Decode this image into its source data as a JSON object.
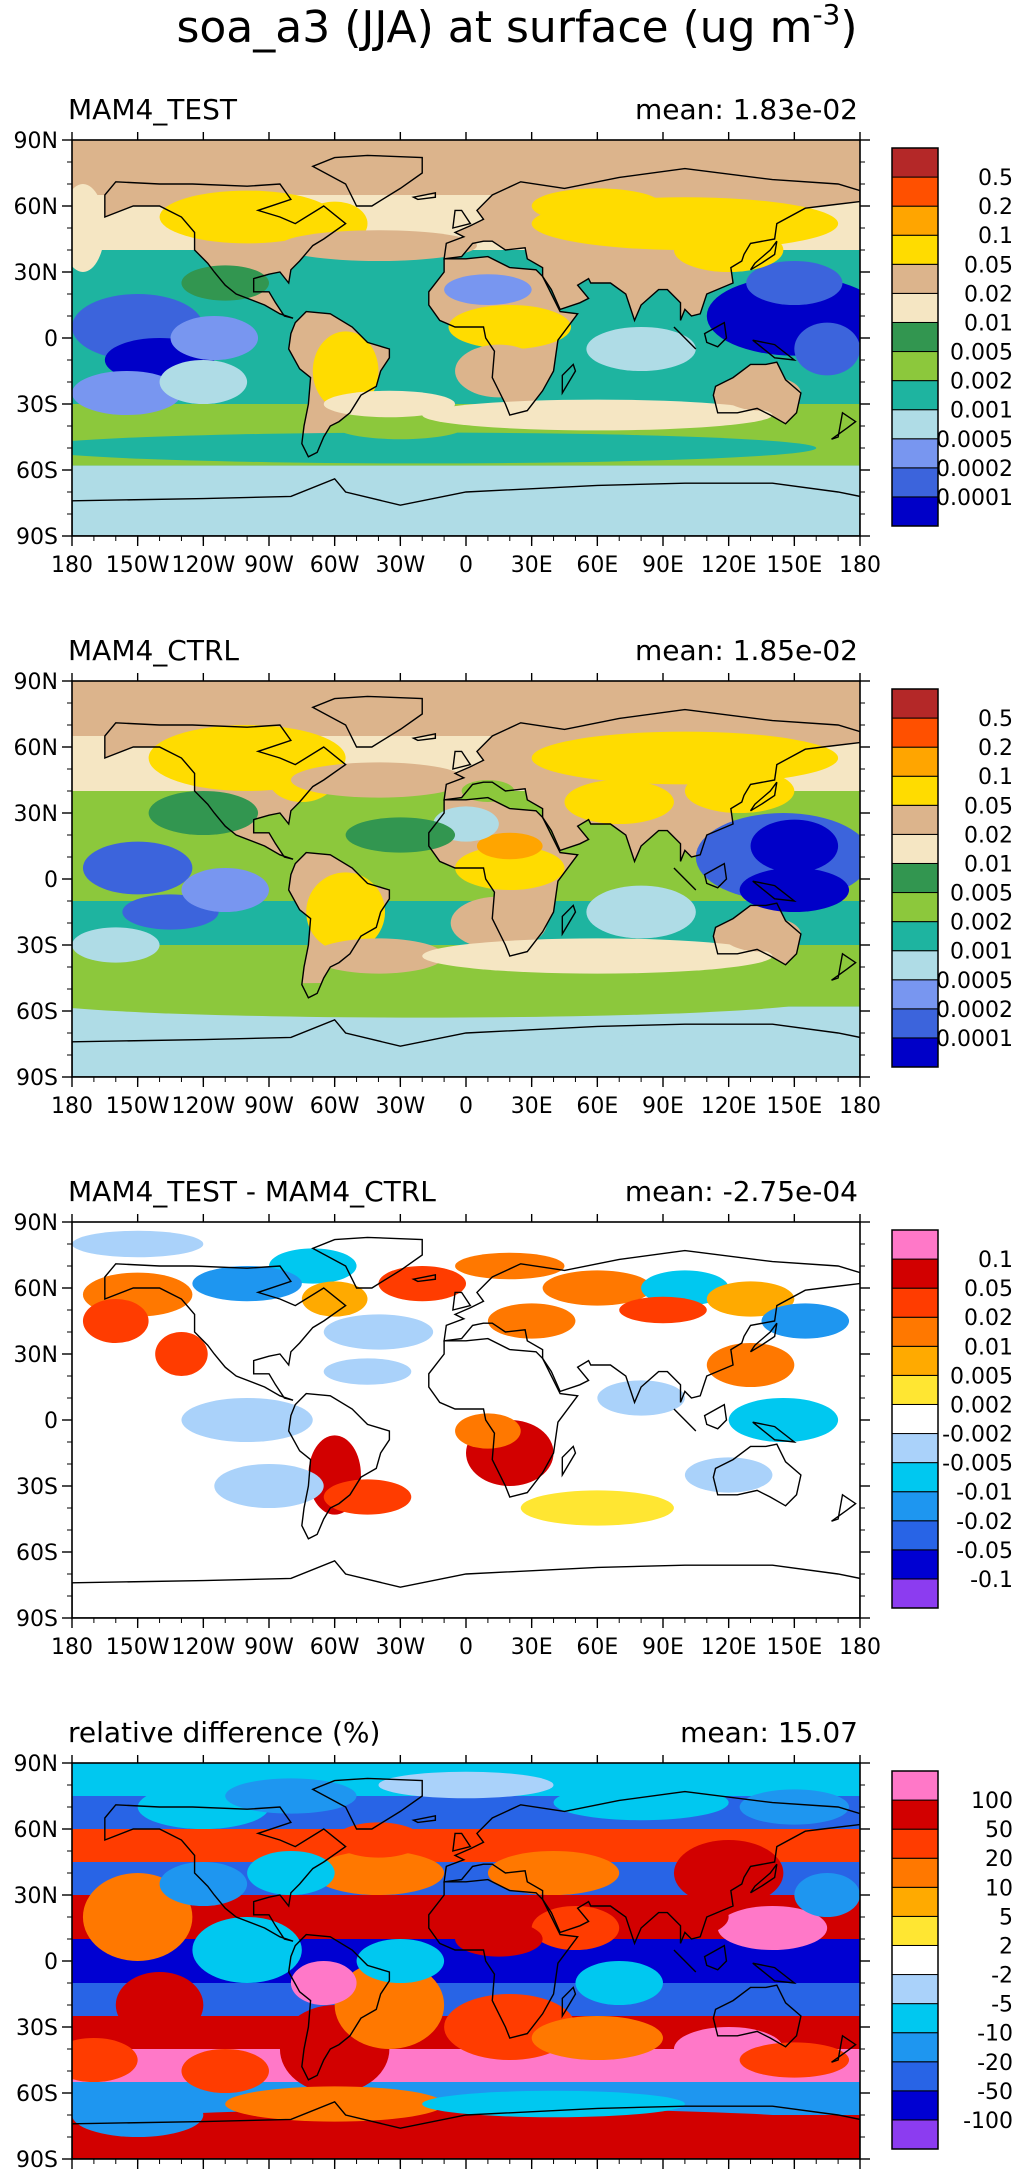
{
  "page_title": {
    "main": "soa_a3 (JJA) at surface (ug m",
    "exp": "-3",
    "close": ")"
  },
  "x_ticks": [
    "180",
    "150W",
    "120W",
    "90W",
    "60W",
    "30W",
    "0",
    "30E",
    "60E",
    "90E",
    "120E",
    "150E",
    "180"
  ],
  "y_ticks": [
    "90N",
    "60N",
    "30N",
    "0",
    "30S",
    "60S",
    "90S"
  ],
  "colors": {
    "abs": [
      "#0000c8",
      "#3c64dc",
      "#7896f0",
      "#afdce6",
      "#1eb4a0",
      "#8cc83c",
      "#329650",
      "#f5e6c3",
      "#dcb48c",
      "#ffdc00",
      "#ffa500",
      "#ff5000",
      "#b42828"
    ],
    "diff": [
      "#8c3cf0",
      "#0000d2",
      "#2864e6",
      "#1e96f0",
      "#00c8f0",
      "#aad2fa",
      "#ffffff",
      "#ffe632",
      "#ffaa00",
      "#ff7800",
      "#ff3c00",
      "#d20000",
      "#ff78c8"
    ],
    "ocean_abs": "#1eb4a0",
    "land_outline": "#000000"
  },
  "panels": [
    {
      "label": "MAM4_TEST",
      "mean": "mean: 1.83e-02",
      "scale": "abs",
      "levels": [
        "0.0001",
        "0.0002",
        "0.0005",
        "0.001",
        "0.002",
        "0.005",
        "0.01",
        "0.02",
        "0.05",
        "0.1",
        "0.2",
        "0.5"
      ]
    },
    {
      "label": "MAM4_CTRL",
      "mean": "mean: 1.85e-02",
      "scale": "abs",
      "levels": [
        "0.0001",
        "0.0002",
        "0.0005",
        "0.001",
        "0.002",
        "0.005",
        "0.01",
        "0.02",
        "0.05",
        "0.1",
        "0.2",
        "0.5"
      ]
    },
    {
      "label": "MAM4_TEST - MAM4_CTRL",
      "mean": "mean: -2.75e-04",
      "scale": "diff",
      "levels": [
        "-0.1",
        "-0.05",
        "-0.02",
        "-0.01",
        "-0.005",
        "-0.002",
        "0.002",
        "0.005",
        "0.01",
        "0.02",
        "0.05",
        "0.1"
      ]
    },
    {
      "label": "relative difference (%)",
      "mean": "mean: 15.07",
      "scale": "diff",
      "levels": [
        "-100",
        "-50",
        "-20",
        "-10",
        "-5",
        "-2",
        "2",
        "5",
        "10",
        "20",
        "50",
        "100"
      ]
    }
  ],
  "chart_data": [
    {
      "type": "heatmap",
      "title": "MAM4_TEST",
      "mean": "1.83e-02",
      "xlim": [
        -180,
        180
      ],
      "ylim": [
        -90,
        90
      ],
      "colorbar_levels": [
        0.0001,
        0.0002,
        0.0005,
        0.001,
        0.002,
        0.005,
        0.01,
        0.02,
        0.05,
        0.1,
        0.2,
        0.5
      ]
    },
    {
      "type": "heatmap",
      "title": "MAM4_CTRL",
      "mean": "1.85e-02",
      "xlim": [
        -180,
        180
      ],
      "ylim": [
        -90,
        90
      ],
      "colorbar_levels": [
        0.0001,
        0.0002,
        0.0005,
        0.001,
        0.002,
        0.005,
        0.01,
        0.02,
        0.05,
        0.1,
        0.2,
        0.5
      ]
    },
    {
      "type": "heatmap",
      "title": "MAM4_TEST - MAM4_CTRL",
      "mean": "-2.75e-04",
      "xlim": [
        -180,
        180
      ],
      "ylim": [
        -90,
        90
      ],
      "colorbar_levels": [
        -0.1,
        -0.05,
        -0.02,
        -0.01,
        -0.005,
        -0.002,
        0.002,
        0.005,
        0.01,
        0.02,
        0.05,
        0.1
      ]
    },
    {
      "type": "heatmap",
      "title": "relative difference (%)",
      "mean": "15.07",
      "xlim": [
        -180,
        180
      ],
      "ylim": [
        -90,
        90
      ],
      "colorbar_levels": [
        -100,
        -50,
        -20,
        -10,
        -5,
        -2,
        2,
        5,
        10,
        20,
        50,
        100
      ]
    }
  ]
}
